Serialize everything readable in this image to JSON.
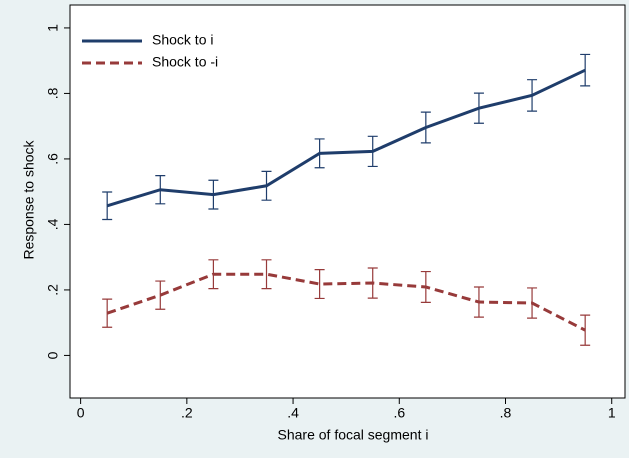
{
  "chart_data": {
    "type": "line",
    "x": [
      0.05,
      0.15,
      0.25,
      0.35,
      0.45,
      0.55,
      0.65,
      0.75,
      0.85,
      0.95
    ],
    "series": [
      {
        "name": "Shock to i",
        "color": "#1f3d6b",
        "dash": false,
        "values": [
          0.457,
          0.506,
          0.491,
          0.518,
          0.617,
          0.623,
          0.696,
          0.755,
          0.794,
          0.871
        ],
        "errors": [
          0.042,
          0.043,
          0.044,
          0.044,
          0.044,
          0.046,
          0.047,
          0.046,
          0.048,
          0.048
        ]
      },
      {
        "name": "Shock to -i",
        "color": "#973a3a",
        "dash": true,
        "values": [
          0.129,
          0.184,
          0.248,
          0.248,
          0.218,
          0.221,
          0.209,
          0.163,
          0.16,
          0.077
        ],
        "errors": [
          0.043,
          0.043,
          0.044,
          0.044,
          0.044,
          0.046,
          0.047,
          0.046,
          0.046,
          0.046
        ]
      }
    ],
    "xlabel": "Share of focal segment i",
    "ylabel": "Response to shock",
    "xlim": [
      -0.02,
      1.025
    ],
    "ylim": [
      -0.13,
      1.07
    ],
    "xticks": [
      0,
      {
        "value": 0.2,
        "label": ".2"
      },
      {
        "value": 0.4,
        "label": ".4"
      },
      {
        "value": 0.6,
        "label": ".6"
      },
      {
        "value": 0.8,
        "label": ".8"
      },
      1
    ],
    "yticks": [
      0,
      {
        "value": 0.2,
        "label": ".2"
      },
      {
        "value": 0.4,
        "label": ".4"
      },
      {
        "value": 0.6,
        "label": ".6"
      },
      {
        "value": 0.8,
        "label": ".8"
      },
      1
    ],
    "legend": "top-left",
    "grid": false
  }
}
